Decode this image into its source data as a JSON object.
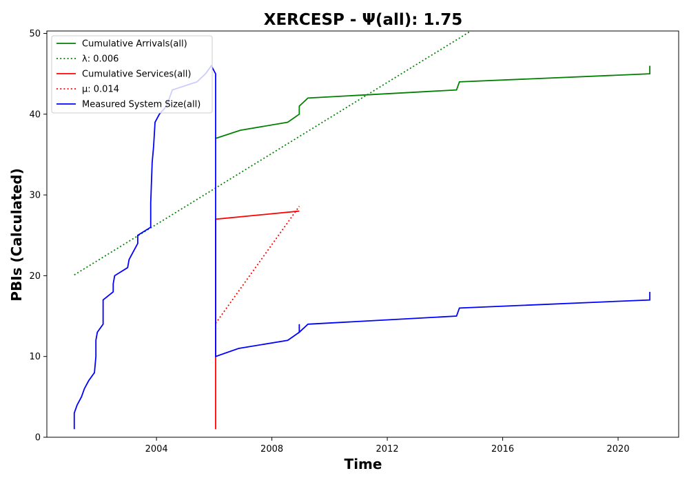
{
  "chart_data": {
    "type": "line",
    "title": "XERCESP -  Ψ(all): 1.75",
    "xlabel": "Time",
    "ylabel": "PBIs (Calculated)",
    "xlim": [
      2000.2,
      2022.1
    ],
    "ylim": [
      0,
      50.3
    ],
    "x_ticks": [
      2004,
      2008,
      2012,
      2016,
      2020
    ],
    "y_ticks": [
      0,
      10,
      20,
      30,
      40,
      50
    ],
    "grid": false,
    "legend_position": "top-left",
    "series": [
      {
        "name": "Cumulative Arrivals(all)",
        "color": "#008000",
        "style": "solid",
        "points": [
          [
            2006.05,
            37
          ],
          [
            2006.9,
            38
          ],
          [
            2008.55,
            39
          ],
          [
            2008.95,
            40
          ],
          [
            2008.95,
            41
          ],
          [
            2009.25,
            42
          ],
          [
            2014.4,
            43
          ],
          [
            2014.5,
            44
          ],
          [
            2021.1,
            45
          ],
          [
            2021.1,
            46
          ]
        ]
      },
      {
        "name": "λ: 0.006",
        "color": "#008000",
        "style": "dotted",
        "points": [
          [
            2001.15,
            20.1
          ],
          [
            2014.9,
            50.3
          ]
        ]
      },
      {
        "name": "Cumulative Services(all)",
        "color": "#ff0000",
        "style": "solid",
        "points": [
          [
            2006.05,
            1
          ],
          [
            2006.05,
            27
          ],
          [
            2008.95,
            28
          ]
        ]
      },
      {
        "name": "μ: 0.014",
        "color": "#ff0000",
        "style": "dotted",
        "points": [
          [
            2006.05,
            14.1
          ],
          [
            2008.95,
            28.6
          ]
        ]
      },
      {
        "name": "Measured System Size(all)",
        "color": "#0000ff",
        "style": "solid",
        "points": [
          [
            2001.15,
            1
          ],
          [
            2001.15,
            3
          ],
          [
            2001.25,
            4
          ],
          [
            2001.4,
            5
          ],
          [
            2001.5,
            6
          ],
          [
            2001.65,
            7
          ],
          [
            2001.85,
            8
          ],
          [
            2001.9,
            10
          ],
          [
            2001.9,
            12
          ],
          [
            2001.95,
            13
          ],
          [
            2002.15,
            14
          ],
          [
            2002.15,
            17
          ],
          [
            2002.5,
            18
          ],
          [
            2002.5,
            19
          ],
          [
            2002.55,
            20
          ],
          [
            2003.0,
            21
          ],
          [
            2003.05,
            22
          ],
          [
            2003.2,
            23
          ],
          [
            2003.35,
            24
          ],
          [
            2003.35,
            25
          ],
          [
            2003.8,
            26
          ],
          [
            2003.8,
            29
          ],
          [
            2003.85,
            34
          ],
          [
            2003.9,
            36
          ],
          [
            2003.95,
            39
          ],
          [
            2004.1,
            40
          ],
          [
            2004.35,
            41
          ],
          [
            2004.55,
            43
          ],
          [
            2005.4,
            44
          ],
          [
            2005.7,
            45
          ],
          [
            2005.9,
            46
          ],
          [
            2006.05,
            45
          ],
          [
            2006.05,
            10
          ],
          [
            2006.85,
            11
          ],
          [
            2008.55,
            12
          ],
          [
            2008.95,
            13
          ],
          [
            2008.95,
            14
          ],
          [
            2008.95,
            13
          ],
          [
            2009.25,
            14
          ],
          [
            2014.4,
            15
          ],
          [
            2014.5,
            16
          ],
          [
            2021.1,
            17
          ],
          [
            2021.1,
            18
          ]
        ]
      }
    ]
  },
  "colors": {
    "arrivals": "#008000",
    "services": "#ff0000",
    "system_size": "#0000ff",
    "overlap_highlight": "#c8c8f0"
  }
}
